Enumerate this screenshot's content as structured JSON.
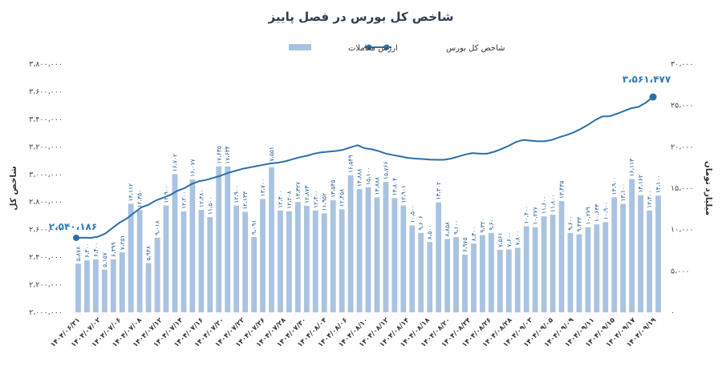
{
  "chart_data": {
    "type": "bar+line",
    "title": "شاخص کل بورس در فصل پاییز",
    "legend": {
      "placement": "top-center",
      "items": [
        {
          "label": "ارزش معاملات",
          "kind": "bar"
        },
        {
          "label": "شاخص کل بورس",
          "kind": "line"
        }
      ]
    },
    "left_axis": {
      "title": "شاخص کل",
      "range": [
        2000000,
        3800000
      ],
      "ticks": [
        "۲،۰۰۰،۰۰۰",
        "۲،۲۰۰،۰۰۰",
        "۲،۴۰۰،۰۰۰",
        "۲،۶۰۰،۰۰۰",
        "۲،۸۰۰،۰۰۰",
        "۳،۰۰۰،۰۰۰",
        "۳،۲۰۰،۰۰۰",
        "۳،۴۰۰،۰۰۰",
        "۳،۶۰۰،۰۰۰",
        "۳،۸۰۰،۰۰۰"
      ]
    },
    "right_axis": {
      "title": "میلیارد تومان",
      "range": [
        0,
        30000
      ],
      "ticks": [
        "۰",
        "۵،۰۰۰",
        "۱۰،۰۰۰",
        "۱۵،۰۰۰",
        "۲۰،۰۰۰",
        "۲۵،۰۰۰",
        "۳۰،۰۰۰"
      ]
    },
    "x_tick_labels": [
      "۱۴۰۴/۰۶/۳۱",
      "۱۴۰۴/۰۷/۰۲",
      "۱۴۰۴/۰۷/۰۶",
      "۱۴۰۴/۰۷/۰۸",
      "۱۴۰۴/۰۷/۱۲",
      "۱۴۰۴/۰۷/۱۴",
      "۱۴۰۴/۰۷/۱۶",
      "۱۴۰۴/۰۷/۲۰",
      "۱۴۰۴/۰۷/۲۲",
      "۱۴۰۴/۰۷/۲۶",
      "۱۴۰۴/۰۷/۲۸",
      "۱۴۰۴/۰۷/۳۰",
      "۱۴۰۴/۰۸/۰۴",
      "۱۴۰۴/۰۸/۰۶",
      "۱۴۰۴/۰۸/۱۰",
      "۱۴۰۴/۰۸/۱۲",
      "۱۴۰۴/۰۸/۱۴",
      "۱۴۰۴/۰۸/۱۸",
      "۱۴۰۴/۰۸/۲۰",
      "۱۴۰۴/۰۸/۲۴",
      "۱۴۰۴/۰۸/۲۶",
      "۱۴۰۴/۰۸/۲۸",
      "۱۴۰۴/۰۹/۰۳",
      "۱۴۰۴/۰۹/۰۵",
      "۱۴۰۴/۰۹/۰۹",
      "۱۴۰۴/۰۹/۱۱",
      "۱۴۰۴/۰۹/۱۵",
      "۱۴۰۴/۰۹/۱۷",
      "۱۴۰۴/۰۹/۱۹"
    ],
    "series": [
      {
        "name": "ارزش معاملات",
        "type": "bar",
        "axis": "right",
        "values": [
          5878,
          6300,
          6400,
          5157,
          6399,
          7251,
          13112,
          12350,
          5948,
          9018,
          12900,
          16702,
          12200,
          16077,
          12380,
          11500,
          17635,
          17634,
          12900,
          12133,
          9091,
          13700,
          17551,
          12300,
          12208,
          13327,
          12873,
          12300,
          11952,
          13545,
          12458,
          16549,
          14888,
          15100,
          13888,
          15766,
          13804,
          12901,
          10500,
          9606,
          8500,
          13302,
          8858,
          9100,
          6975,
          8300,
          9320,
          9600,
          7561,
          7600,
          7800,
          10400,
          10277,
          11600,
          11800,
          13435,
          9600,
          9433,
          10279,
          10633,
          10900,
          13900,
          13100,
          16113,
          14162,
          12300,
          14100
        ],
        "labels": [
          "۵،۸۷۸",
          "۶،۳۰۰",
          "۶،۴۰۰",
          "۵،۱۵۷",
          "۶،۳۹۹",
          "۷،۲۵۱",
          "۱۳،۱۱۲",
          "۱۲،۳۵۰",
          "۵،۹۴۸",
          "۹،۰۱۸",
          "۱۲،۹۰۰",
          "۱۶،۷۰۲",
          "۱۲،۲۰۰",
          "۱۶،۰۷۷",
          "۱۲،۳۸۰",
          "۱۱،۵۰۰",
          "۱۷،۶۳۵",
          "۱۷،۶۳۴",
          "۱۲،۹۰۰",
          "۱۲،۱۳۳",
          "۹،۰۹۱",
          "۱۳،۷۰۰",
          "۱۷،۵۵۱",
          "۱۲،۳۰۰",
          "۱۲،۲۰۸",
          "۱۳،۳۲۷",
          "۱۲،۸۷۳",
          "۱۲،۳۰۰",
          "۱۱،۹۵۲",
          "۱۳،۵۴۵",
          "۱۲،۴۵۸",
          "۱۶،۵۴۹",
          "۱۴،۸۸۸",
          "۱۵،۱۰۰",
          "۱۳،۸۸۸",
          "۱۵،۷۶۶",
          "۱۳،۸۰۴",
          "۱۲،۹۰۱",
          "۱۰،۵۰۰",
          "۹،۶۰۶",
          "۸،۵۰۰",
          "۱۳،۳۰۲",
          "۸،۸۵۸",
          "۹،۱۰۰",
          "۶،۹۷۵",
          "۸،۳۰۰",
          "۹،۳۲۰",
          "۹،۶۰۰",
          "۷،۵۶۱",
          "۷،۶۰۰",
          "۷،۸۰۰",
          "۱۰،۴۰۰",
          "۱۰،۲۷۷",
          "۱۱،۶۰۰",
          "۱۱،۸۰۰",
          "۱۳،۴۳۵",
          "۹،۶۰۰",
          "۹،۴۳۳",
          "۱۰،۲۷۹",
          "۱۰،۶۳۳",
          "۱۰،۹۰۰",
          "۱۳،۹۰۰",
          "۱۳،۱۰۰",
          "۱۶،۱۱۳",
          "۱۴،۱۶۲",
          "۱۲،۳۰۰",
          "۱۴،۱۰۰"
        ]
      },
      {
        "name": "شاخص کل بورس",
        "type": "line",
        "axis": "left",
        "values": [
          2540186,
          2542000,
          2540000,
          2548000,
          2570000,
          2610000,
          2650000,
          2680000,
          2720000,
          2760000,
          2780000,
          2810000,
          2830000,
          2850000,
          2880000,
          2900000,
          2930000,
          2950000,
          2960000,
          2975000,
          2990000,
          3010000,
          3025000,
          3040000,
          3050000,
          3060000,
          3070000,
          3080000,
          3085000,
          3095000,
          3110000,
          3125000,
          3135000,
          3150000,
          3160000,
          3165000,
          3170000,
          3178000,
          3195000,
          3212000,
          3190000,
          3182000,
          3168000,
          3150000,
          3140000,
          3130000,
          3120000,
          3115000,
          3112000,
          3108000,
          3106000,
          3106000,
          3115000,
          3130000,
          3145000,
          3155000,
          3150000,
          3150000,
          3165000,
          3185000,
          3208000,
          3235000,
          3250000,
          3245000,
          3240000,
          3240000,
          3250000,
          3270000,
          3285000,
          3305000,
          3330000,
          3360000,
          3395000,
          3420000,
          3422000,
          3440000,
          3460000,
          3480000,
          3490000,
          3520000,
          3561477
        ],
        "start_label": "۲،۵۴۰،۱۸۶",
        "end_label": "۳،۵۶۱،۴۷۷"
      }
    ],
    "grid": false
  }
}
